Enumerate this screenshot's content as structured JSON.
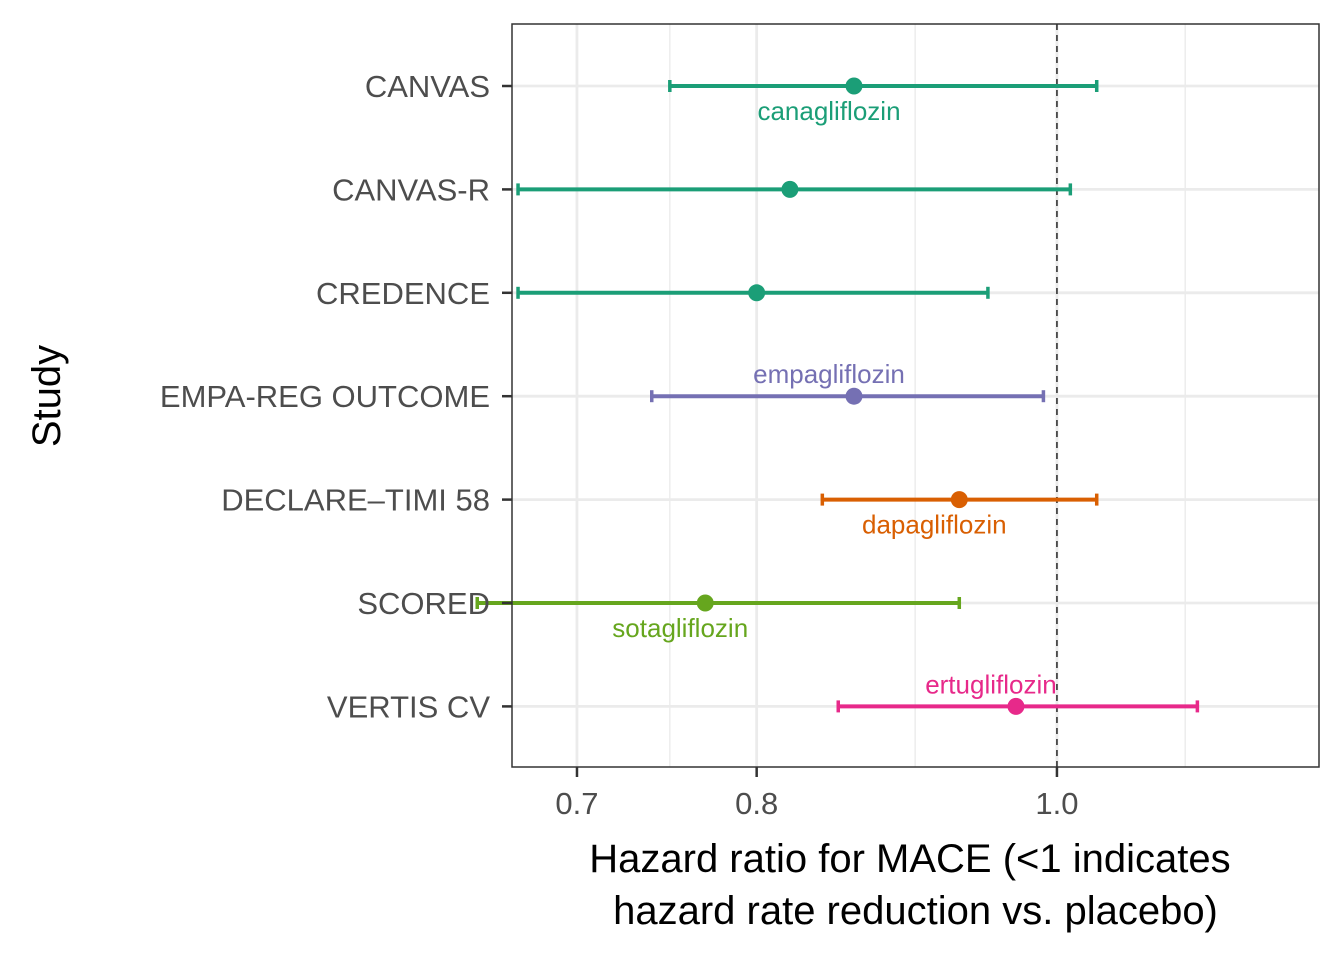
{
  "chart_data": {
    "type": "forest",
    "xlabel": [
      "Hazard ratio for MACE (<1 indicates",
      "hazard rate reduction vs. placebo)"
    ],
    "ylabel": "Study",
    "x_scale": "log",
    "xlim": [
      0.667,
      1.215
    ],
    "x_ticks": [
      0.7,
      0.8,
      1.0
    ],
    "x_tick_labels": [
      "0.7",
      "0.8",
      "1.0"
    ],
    "x_minor_ticks": [
      0.75,
      0.9,
      1.1
    ],
    "reference_line": 1.0,
    "grid": true,
    "categories": [
      "CANVAS",
      "CANVAS-R",
      "CREDENCE",
      "EMPA-REG OUTCOME",
      "DECLARE–TIMI 58",
      "SCORED",
      "VERTIS CV"
    ],
    "studies": [
      {
        "name": "CANVAS",
        "hr": 0.86,
        "lower": 0.75,
        "upper": 1.03,
        "drug": "canagliflozin",
        "drug_label": "canagliflozin",
        "label_pos": "below",
        "color": "#1b9e77"
      },
      {
        "name": "CANVAS-R",
        "hr": 0.82,
        "lower": 0.67,
        "upper": 1.01,
        "drug": "canagliflozin",
        "drug_label": "",
        "label_pos": "below",
        "color": "#1b9e77"
      },
      {
        "name": "CREDENCE",
        "hr": 0.8,
        "lower": 0.67,
        "upper": 0.95,
        "drug": "canagliflozin",
        "drug_label": "",
        "label_pos": "below",
        "color": "#1b9e77"
      },
      {
        "name": "EMPA-REG OUTCOME",
        "hr": 0.86,
        "lower": 0.74,
        "upper": 0.99,
        "drug": "empagliflozin",
        "drug_label": "empagliflozin",
        "label_pos": "above",
        "color": "#7570b3"
      },
      {
        "name": "DECLARE–TIMI 58",
        "hr": 0.93,
        "lower": 0.84,
        "upper": 1.03,
        "drug": "dapagliflozin",
        "drug_label": "dapagliflozin",
        "label_pos": "below",
        "color": "#d95f02"
      },
      {
        "name": "SCORED",
        "hr": 0.77,
        "lower": 0.65,
        "upper": 0.93,
        "drug": "sotagliflozin",
        "drug_label": "sotagliflozin",
        "label_pos": "below",
        "color": "#66a61e"
      },
      {
        "name": "VERTIS CV",
        "hr": 0.97,
        "lower": 0.85,
        "upper": 1.11,
        "drug": "ertugliflozin",
        "drug_label": "ertugliflozin",
        "label_pos": "above",
        "color": "#e7298a"
      }
    ]
  }
}
